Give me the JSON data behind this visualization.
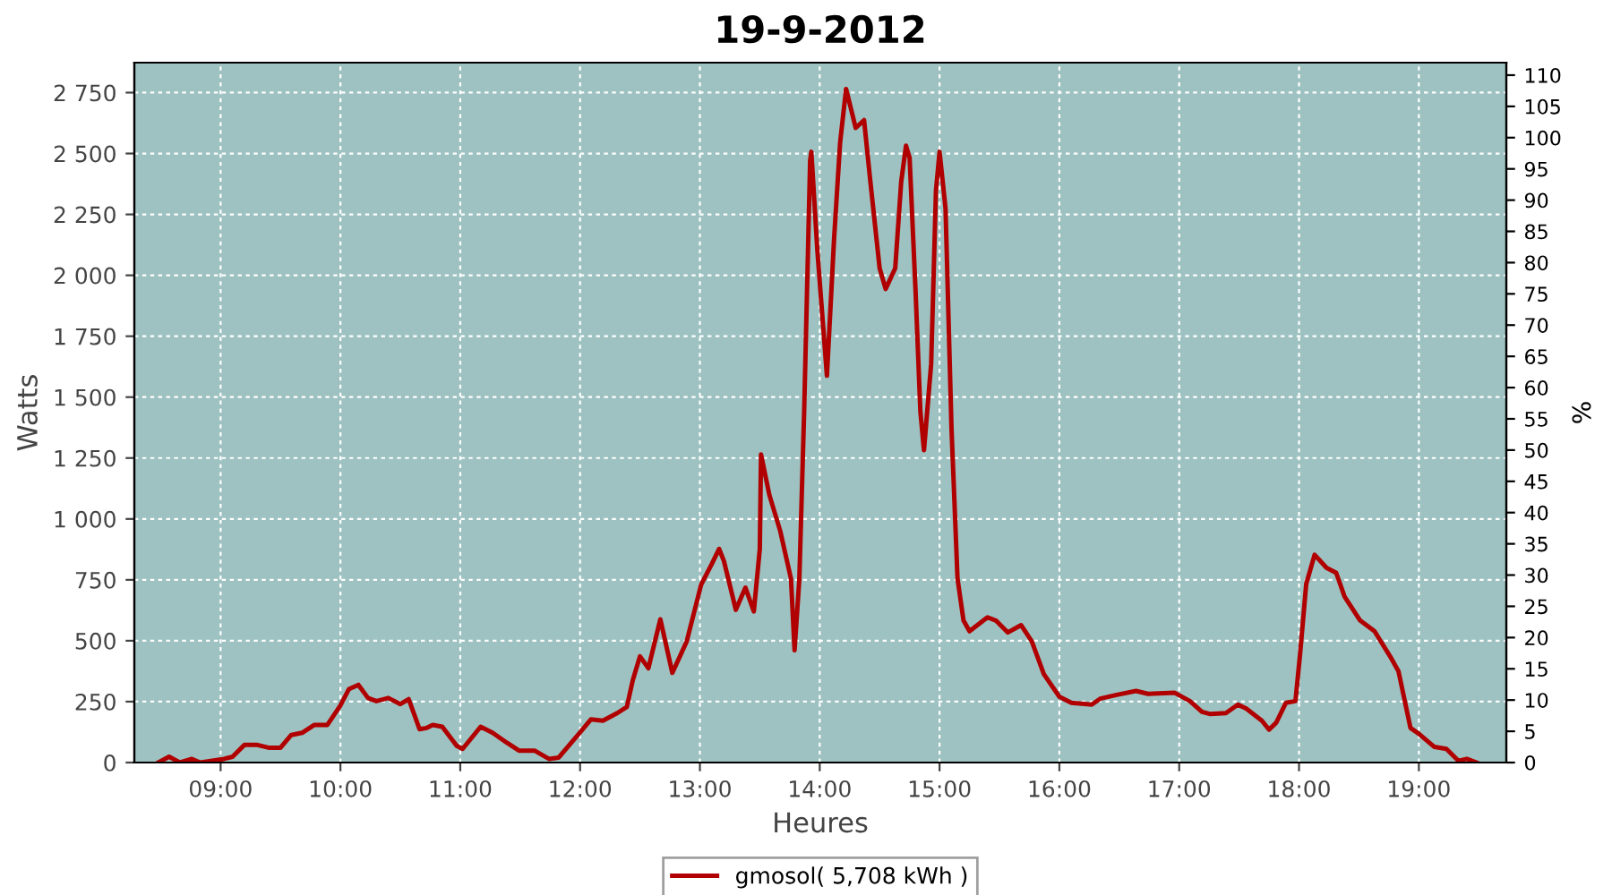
{
  "chart_data": {
    "type": "line",
    "title": "19-9-2012",
    "xlabel": "Heures",
    "ylabel": "Watts",
    "y2label": "%",
    "xlim": [
      8.28,
      19.73
    ],
    "ylim": [
      0,
      2873
    ],
    "y2lim": [
      0,
      112
    ],
    "xticks": [
      {
        "value": 9,
        "label": "09:00"
      },
      {
        "value": 10,
        "label": "10:00"
      },
      {
        "value": 11,
        "label": "11:00"
      },
      {
        "value": 12,
        "label": "12:00"
      },
      {
        "value": 13,
        "label": "13:00"
      },
      {
        "value": 14,
        "label": "14:00"
      },
      {
        "value": 15,
        "label": "15:00"
      },
      {
        "value": 16,
        "label": "16:00"
      },
      {
        "value": 17,
        "label": "17:00"
      },
      {
        "value": 18,
        "label": "18:00"
      },
      {
        "value": 19,
        "label": "19:00"
      }
    ],
    "yticks": [
      0,
      250,
      500,
      750,
      {
        "value": 1000,
        "label": "1 000"
      },
      {
        "value": 1250,
        "label": "1 250"
      },
      {
        "value": 1500,
        "label": "1 500"
      },
      {
        "value": 1750,
        "label": "1 750"
      },
      {
        "value": 2000,
        "label": "2 000"
      },
      {
        "value": 2250,
        "label": "2 250"
      },
      {
        "value": 2500,
        "label": "2 500"
      },
      {
        "value": 2750,
        "label": "2 750"
      }
    ],
    "y2ticks": [
      0,
      5,
      10,
      15,
      20,
      25,
      30,
      35,
      40,
      45,
      50,
      55,
      60,
      65,
      70,
      75,
      80,
      85,
      90,
      95,
      100,
      105,
      110
    ],
    "grid": true,
    "legend": "bottom",
    "line_style": "solid",
    "marker": "none",
    "series": [
      {
        "name": "gmosol( 5,708 kWh )",
        "color": "#b00000",
        "x": [
          8.48,
          8.57,
          8.66,
          8.76,
          8.83,
          9.03,
          9.1,
          9.2,
          9.3,
          9.4,
          9.5,
          9.59,
          9.68,
          9.78,
          9.89,
          10.0,
          10.07,
          10.15,
          10.23,
          10.3,
          10.4,
          10.5,
          10.57,
          10.66,
          10.72,
          10.77,
          10.85,
          10.97,
          11.02,
          11.17,
          11.27,
          11.39,
          11.49,
          11.62,
          11.74,
          11.82,
          11.99,
          12.09,
          12.19,
          12.31,
          12.39,
          12.44,
          12.5,
          12.57,
          12.67,
          12.77,
          12.89,
          13.01,
          13.1,
          13.16,
          13.2,
          13.3,
          13.38,
          13.45,
          13.5,
          13.51,
          13.58,
          13.67,
          13.76,
          13.79,
          13.83,
          13.87,
          13.92,
          13.93,
          13.98,
          14.06,
          14.12,
          14.17,
          14.22,
          14.3,
          14.37,
          14.42,
          14.5,
          14.55,
          14.63,
          14.68,
          14.72,
          14.75,
          14.8,
          14.84,
          14.87,
          14.93,
          14.97,
          15.0,
          15.05,
          15.1,
          15.15,
          15.2,
          15.25,
          15.4,
          15.47,
          15.57,
          15.68,
          15.77,
          15.87,
          16.0,
          16.1,
          16.27,
          16.34,
          16.47,
          16.64,
          16.74,
          16.96,
          17.09,
          17.19,
          17.26,
          17.39,
          17.49,
          17.56,
          17.69,
          17.75,
          17.81,
          17.89,
          17.97,
          18.01,
          18.06,
          18.13,
          18.23,
          18.31,
          18.38,
          18.51,
          18.63,
          18.76,
          18.83,
          18.93,
          19.0,
          19.13,
          19.23,
          19.33,
          19.4,
          19.48
        ],
        "values": [
          0,
          24,
          0,
          15,
          0,
          15,
          24,
          73,
          73,
          61,
          61,
          113,
          122,
          154,
          154,
          235,
          301,
          319,
          265,
          252,
          265,
          240,
          260,
          137,
          142,
          154,
          147,
          69,
          56,
          147,
          122,
          81,
          49,
          49,
          15,
          20,
          118,
          177,
          172,
          203,
          228,
          338,
          436,
          387,
          588,
          368,
          497,
          730,
          816,
          877,
          828,
          627,
          718,
          620,
          877,
          1265,
          1098,
          951,
          755,
          461,
          755,
          1441,
          2471,
          2507,
          2103,
          1588,
          2152,
          2544,
          2765,
          2605,
          2637,
          2397,
          2029,
          1944,
          2029,
          2385,
          2532,
          2483,
          1932,
          1441,
          1282,
          1637,
          2348,
          2507,
          2274,
          1368,
          755,
          583,
          539,
          596,
          583,
          534,
          564,
          497,
          363,
          270,
          245,
          238,
          262,
          277,
          294,
          282,
          287,
          252,
          208,
          199,
          203,
          238,
          221,
          172,
          135,
          164,
          245,
          252,
          451,
          733,
          853,
          799,
          779,
          681,
          583,
          539,
          436,
          375,
          142,
          118,
          64,
          56,
          7,
          15,
          0
        ]
      }
    ]
  }
}
